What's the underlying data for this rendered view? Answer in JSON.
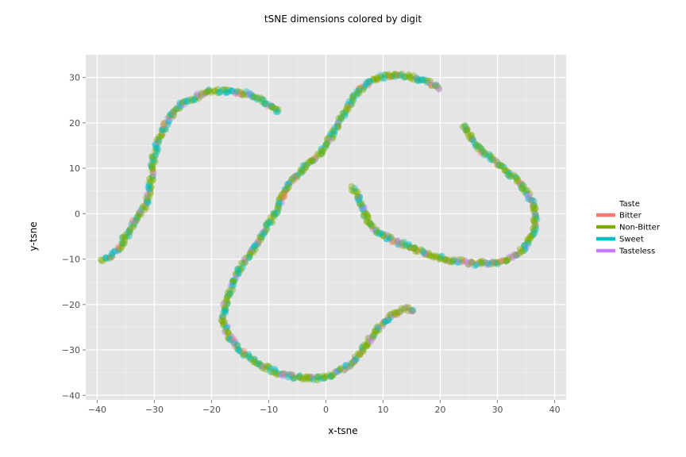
{
  "chart_data": {
    "type": "scatter",
    "title": "tSNE dimensions colored by digit",
    "xlabel": "x-tsne",
    "ylabel": "y-tsne",
    "xlim": [
      -42,
      42
    ],
    "ylim": [
      -41,
      35
    ],
    "xticks": [
      -40,
      -30,
      -20,
      -10,
      0,
      10,
      20,
      30,
      40
    ],
    "yticks": [
      -40,
      -30,
      -20,
      -10,
      0,
      10,
      20,
      30
    ],
    "xtick_labels": [
      "−40",
      "−30",
      "−20",
      "−10",
      "0",
      "10",
      "20",
      "30",
      "40"
    ],
    "ytick_labels": [
      "−40",
      "−30",
      "−20",
      "−10",
      "0",
      "10",
      "20",
      "30"
    ],
    "grid": true,
    "legend": {
      "title": "Taste",
      "placement": "right",
      "entries": [
        "Bitter",
        "Non-Bitter",
        "Sweet",
        "Tasteless"
      ]
    },
    "colors": {
      "Bitter": "#F8766D",
      "Non-Bitter": "#7CAE00",
      "Sweet": "#00BFC4",
      "Tasteless": "#C77CFF"
    },
    "curves": [
      {
        "name": "left-s-curve",
        "points": [
          [
            -39,
            -10.2
          ],
          [
            -37.5,
            -9.5
          ],
          [
            -36,
            -7
          ],
          [
            -34.5,
            -4
          ],
          [
            -33,
            -1
          ],
          [
            -31.5,
            2
          ],
          [
            -30.8,
            5
          ],
          [
            -30.5,
            9
          ],
          [
            -30,
            13
          ],
          [
            -29.5,
            15.5
          ],
          [
            -29,
            17
          ],
          [
            -27.5,
            21
          ],
          [
            -25.5,
            24
          ],
          [
            -23,
            25.5
          ],
          [
            -20.5,
            27
          ],
          [
            -18,
            27
          ],
          [
            -16,
            26.8
          ],
          [
            -14,
            26.5
          ],
          [
            -12,
            25.5
          ],
          [
            -10,
            24
          ],
          [
            -9,
            23
          ],
          [
            -8,
            22.3
          ]
        ]
      },
      {
        "name": "main-s-curve",
        "points": [
          [
            11,
            30.5
          ],
          [
            9,
            29.8
          ],
          [
            7,
            28.5
          ],
          [
            5,
            26
          ],
          [
            3,
            22
          ],
          [
            1,
            17
          ],
          [
            -1,
            13
          ],
          [
            -3,
            11
          ],
          [
            -5,
            8.5
          ],
          [
            -6.5,
            6.5
          ],
          [
            -7.5,
            4
          ],
          [
            -9,
            0
          ],
          [
            -11,
            -4.5
          ],
          [
            -13,
            -8.5
          ],
          [
            -15,
            -12
          ],
          [
            -16.5,
            -16
          ],
          [
            -17.5,
            -19.5
          ],
          [
            -18,
            -23
          ],
          [
            -17,
            -27
          ],
          [
            -15,
            -30
          ],
          [
            -12,
            -33
          ],
          [
            -8.5,
            -35
          ],
          [
            -5,
            -36
          ],
          [
            -2,
            -36.3
          ],
          [
            1,
            -35.5
          ],
          [
            4,
            -33.5
          ],
          [
            6,
            -31
          ],
          [
            8,
            -27
          ],
          [
            10,
            -24
          ],
          [
            12.5,
            -21.5
          ],
          [
            14,
            -21
          ],
          [
            15.5,
            -21.3
          ]
        ]
      },
      {
        "name": "top-right-arc",
        "points": [
          [
            11,
            30.5
          ],
          [
            14,
            30.3
          ],
          [
            17,
            29.3
          ],
          [
            19,
            28.5
          ],
          [
            20,
            27.5
          ]
        ]
      },
      {
        "name": "right-arc",
        "points": [
          [
            24,
            19.5
          ],
          [
            25.5,
            17
          ],
          [
            27,
            14
          ],
          [
            29,
            12
          ],
          [
            31,
            10
          ],
          [
            33,
            8
          ],
          [
            35,
            5
          ],
          [
            36.3,
            2
          ],
          [
            36.6,
            -1
          ],
          [
            36.5,
            -4
          ],
          [
            35,
            -7
          ],
          [
            33.5,
            -9
          ],
          [
            31,
            -10.5
          ],
          [
            29,
            -10.8
          ],
          [
            26,
            -11
          ],
          [
            23.5,
            -10.5
          ],
          [
            21,
            -10
          ],
          [
            18,
            -9
          ],
          [
            15,
            -7.5
          ],
          [
            12,
            -6
          ],
          [
            9.5,
            -4.5
          ],
          [
            7.5,
            -2
          ],
          [
            6.5,
            1
          ],
          [
            5.5,
            4
          ],
          [
            4.5,
            6
          ]
        ]
      }
    ]
  }
}
